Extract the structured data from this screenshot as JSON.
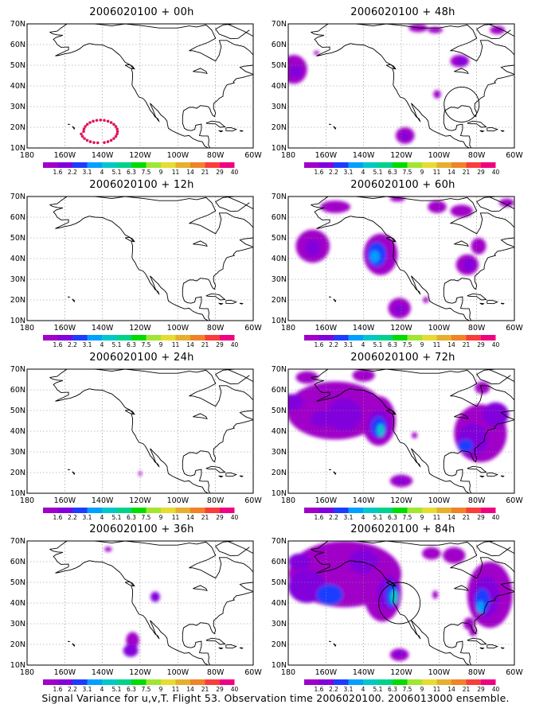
{
  "panels": [
    {
      "title": "2006020100 + 00h"
    },
    {
      "title": "2006020100 + 48h"
    },
    {
      "title": "2006020100 + 12h"
    },
    {
      "title": "2006020100 + 60h"
    },
    {
      "title": "2006020100 + 24h"
    },
    {
      "title": "2006020100 + 72h"
    },
    {
      "title": "2006020100 + 36h"
    },
    {
      "title": "2006020100 + 84h"
    }
  ],
  "axes": {
    "lat_labels": [
      "70N",
      "60N",
      "50N",
      "40N",
      "30N",
      "20N",
      "10N"
    ],
    "lon_labels": [
      "180",
      "160W",
      "140W",
      "120W",
      "100W",
      "80W",
      "60W"
    ]
  },
  "colorbar": {
    "labels": [
      "1.6",
      "2.2",
      "3.1",
      "4",
      "5.1",
      "6.3",
      "7.5",
      "9",
      "11",
      "14",
      "21",
      "29",
      "40"
    ],
    "colors": [
      "#a000c8",
      "#8200dc",
      "#1e3cff",
      "#00a0ff",
      "#00c8c8",
      "#00d28c",
      "#00dc00",
      "#a0e632",
      "#e6dc32",
      "#e6af2d",
      "#f08228",
      "#fa3c3c",
      "#f00082"
    ]
  },
  "caption": "Signal Variance for u,v,T. Flight 53. Observation time 2006020100. 2006013000 ensemble."
}
